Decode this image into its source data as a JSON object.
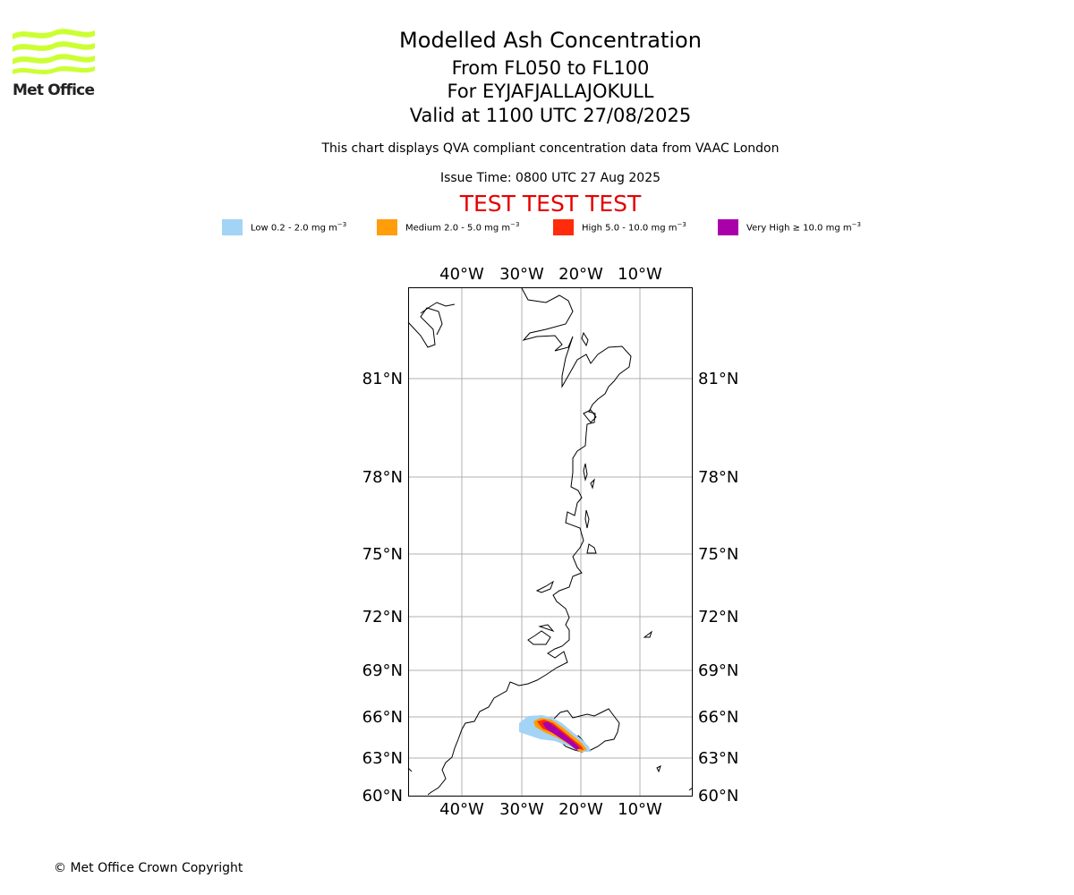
{
  "header": {
    "title": "Modelled Ash Concentration",
    "flight_levels": "From FL050 to FL100",
    "volcano": "For EYJAFJALLAJOKULL",
    "valid_time": "Valid at 1100 UTC 27/08/2025",
    "subtitle": "This chart displays QVA compliant concentration data from VAAC London",
    "issue_time": "Issue Time: 0800 UTC 27 Aug 2025",
    "test_banner": "TEST TEST TEST"
  },
  "logo": {
    "text": "Met Office",
    "color": "#ccff33"
  },
  "legend": [
    {
      "label": "Low 0.2 - 2.0 mg m",
      "unit_exp": "−3",
      "color": "#a3d4f5"
    },
    {
      "label": "Medium 2.0 - 5.0 mg m",
      "unit_exp": "−3",
      "color": "#ff9d0a"
    },
    {
      "label": "High 5.0 - 10.0 mg m",
      "unit_exp": "−3",
      "color": "#ff2b0a"
    },
    {
      "label": "Very High  ≥  10.0 mg m",
      "unit_exp": "−3",
      "color": "#aa00aa"
    }
  ],
  "map": {
    "lon_ticks": [
      "40°W",
      "30°W",
      "20°W",
      "10°W"
    ],
    "lat_ticks": [
      "81°N",
      "78°N",
      "75°N",
      "72°N",
      "69°N",
      "66°N",
      "63°N",
      "60°N"
    ],
    "grid": true
  },
  "footer": {
    "copyright": "© Met Office Crown Copyright"
  }
}
